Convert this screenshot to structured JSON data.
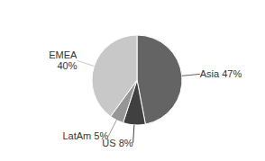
{
  "chart_data": {
    "type": "pie",
    "categories": [
      "Asia 47%",
      "US 8%",
      "LatAm 5%",
      "EMEA\n40%"
    ],
    "values": [
      47,
      8,
      5,
      40
    ],
    "colors": [
      "#646464",
      "#404040",
      "#969696",
      "#c8c8c8"
    ]
  }
}
